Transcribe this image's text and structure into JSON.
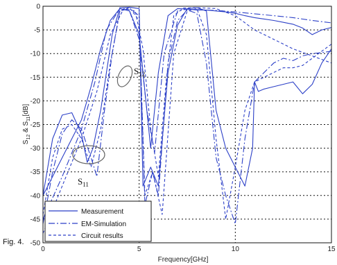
{
  "figure_caption": "Fig. 4.",
  "chart_data": {
    "type": "line",
    "title": "",
    "xlabel": "Frequency[GHz]",
    "ylabel": "S12 & S11[dB]",
    "ylabel_parts": {
      "s1": "S",
      "sub1": "12",
      "amp": " & ",
      "s2": "S",
      "sub2": "11",
      "unit": "[dB]"
    },
    "xlim": [
      0,
      15
    ],
    "ylim": [
      -50,
      0
    ],
    "xticks": [
      "0",
      "5",
      "10",
      "15"
    ],
    "yticks": [
      "0",
      "-5",
      "-10",
      "-15",
      "-20",
      "-25",
      "-30",
      "-35",
      "-40",
      "-45",
      "-50"
    ],
    "grid": true,
    "legend_position": "bottom-left",
    "colors": {
      "series": "#2b3fc7",
      "axis": "#111111",
      "grid": "#111111",
      "ellipse": "#666666"
    },
    "annotations": [
      {
        "text": "S",
        "sub": "12",
        "x": 4.7,
        "y": -15.5
      },
      {
        "text": "S",
        "sub": "11",
        "x": 1.8,
        "y": -39.5
      }
    ],
    "series": [
      {
        "name": "Measurement",
        "dash": "solid",
        "curves": [
          {
            "label": "S12",
            "x": [
              0.0,
              1.0,
              2.0,
              2.5,
              3.0,
              3.5,
              4.0,
              4.5,
              5.0,
              5.3,
              5.6,
              6.0,
              6.5,
              7.0,
              7.5,
              8.0,
              8.5,
              9.0,
              9.5,
              10.0,
              10.5,
              11.0,
              11.5,
              12.0,
              12.5,
              13.0,
              13.5,
              14.0,
              14.5,
              15.0
            ],
            "y": [
              -40.0,
              -32.0,
              -24.0,
              -17.0,
              -9.0,
              -3.0,
              -0.5,
              -1.0,
              -6.0,
              -18.0,
              -30.0,
              -14.0,
              -2.0,
              -0.5,
              -0.6,
              -0.8,
              -0.8,
              -1.0,
              -1.2,
              -1.5,
              -2.0,
              -2.4,
              -2.7,
              -3.0,
              -3.4,
              -3.8,
              -4.6,
              -6.0,
              -5.0,
              -4.5
            ]
          },
          {
            "label": "S11",
            "x": [
              0.0,
              0.5,
              1.0,
              1.5,
              2.0,
              2.3,
              2.6,
              3.0,
              3.3,
              3.6,
              4.0,
              4.5,
              5.0,
              5.2,
              5.6,
              6.0,
              6.5,
              7.0,
              7.5,
              8.0,
              8.5,
              9.0,
              9.5,
              10.0,
              10.5,
              10.9,
              11.0,
              11.2,
              11.5,
              12.0,
              12.5,
              13.0,
              13.5,
              14.0,
              14.5,
              15.0
            ],
            "y": [
              -40.0,
              -28.0,
              -23.0,
              -22.5,
              -27.0,
              -33.0,
              -30.0,
              -22.0,
              -14.0,
              -6.0,
              -0.3,
              -0.2,
              -0.5,
              -38.0,
              -34.0,
              -38.0,
              -14.0,
              -4.0,
              -0.5,
              -0.3,
              -1.0,
              -22.0,
              -30.0,
              -34.0,
              -38.0,
              -30.0,
              -16.0,
              -18.0,
              -17.5,
              -17.0,
              -16.5,
              -16.0,
              -18.5,
              -16.5,
              -12.0,
              -9.0
            ]
          }
        ]
      },
      {
        "name": "EM-Simulation",
        "dash": "dashdot",
        "curves": [
          {
            "label": "S12",
            "x": [
              0.0,
              1.0,
              2.0,
              2.7,
              3.3,
              4.0,
              4.5,
              5.0,
              5.4,
              5.8,
              6.3,
              7.0,
              7.5,
              8.0,
              9.0,
              10.0,
              11.0,
              12.0,
              13.0,
              14.0,
              15.0
            ],
            "y": [
              -45.0,
              -36.0,
              -26.0,
              -16.0,
              -5.0,
              -0.5,
              -1.0,
              -7.0,
              -22.0,
              -31.0,
              -10.0,
              -1.0,
              -0.6,
              -0.7,
              -0.9,
              -1.2,
              -1.6,
              -2.0,
              -2.4,
              -3.0,
              -3.5
            ]
          },
          {
            "label": "S11",
            "x": [
              0.0,
              0.5,
              1.0,
              1.5,
              2.0,
              2.5,
              2.8,
              3.2,
              3.6,
              4.0,
              4.5,
              5.0,
              5.3,
              5.7,
              6.0,
              6.5,
              7.0,
              7.5,
              8.0,
              8.5,
              9.0,
              9.5,
              10.0,
              10.5,
              11.0,
              11.5,
              12.0,
              12.5,
              13.0,
              13.5,
              14.0,
              14.5,
              15.0
            ],
            "y": [
              -46.0,
              -35.0,
              -27.0,
              -24.0,
              -26.0,
              -32.0,
              -36.0,
              -22.0,
              -10.0,
              -1.0,
              -0.5,
              -2.0,
              -42.0,
              -35.0,
              -40.0,
              -12.0,
              -3.0,
              -0.8,
              -1.5,
              -12.0,
              -32.0,
              -40.0,
              -46.0,
              -28.0,
              -16.0,
              -14.0,
              -12.0,
              -11.0,
              -11.5,
              -10.5,
              -10.0,
              -9.8,
              -9.5
            ]
          }
        ]
      },
      {
        "name": "Circuit results",
        "dash": "dashed",
        "curves": [
          {
            "label": "S12",
            "x": [
              0.0,
              1.0,
              2.0,
              2.8,
              3.5,
              4.2,
              4.8,
              5.2,
              5.6,
              6.0,
              6.4,
              6.8,
              7.3,
              8.0,
              9.0,
              10.0,
              11.0,
              12.0,
              13.0,
              14.0,
              15.0
            ],
            "y": [
              -48.0,
              -38.0,
              -28.0,
              -18.0,
              -6.0,
              -0.5,
              -1.0,
              -9.0,
              -26.0,
              -36.0,
              -16.0,
              -2.0,
              -0.4,
              -0.3,
              -0.5,
              -2.0,
              -5.0,
              -7.0,
              -9.0,
              -10.5,
              -12.0
            ]
          },
          {
            "label": "S11",
            "x": [
              0.0,
              0.5,
              1.0,
              1.5,
              2.0,
              2.5,
              3.0,
              3.5,
              4.0,
              4.5,
              5.0,
              5.3,
              5.7,
              6.2,
              6.8,
              7.5,
              8.0,
              8.5,
              9.0,
              9.5,
              10.0,
              10.5,
              11.0,
              11.5,
              12.0,
              12.5,
              13.0,
              13.5,
              14.0,
              14.5,
              15.0
            ],
            "y": [
              -44.0,
              -32.0,
              -26.0,
              -25.0,
              -28.0,
              -34.0,
              -26.0,
              -12.0,
              -1.0,
              -0.3,
              -3.0,
              -40.0,
              -35.0,
              -44.0,
              -10.0,
              -1.0,
              -0.5,
              -6.0,
              -28.0,
              -45.0,
              -34.0,
              -22.0,
              -16.0,
              -15.0,
              -14.0,
              -13.0,
              -13.0,
              -12.5,
              -11.0,
              -9.5,
              -8.0
            ]
          }
        ]
      }
    ]
  }
}
